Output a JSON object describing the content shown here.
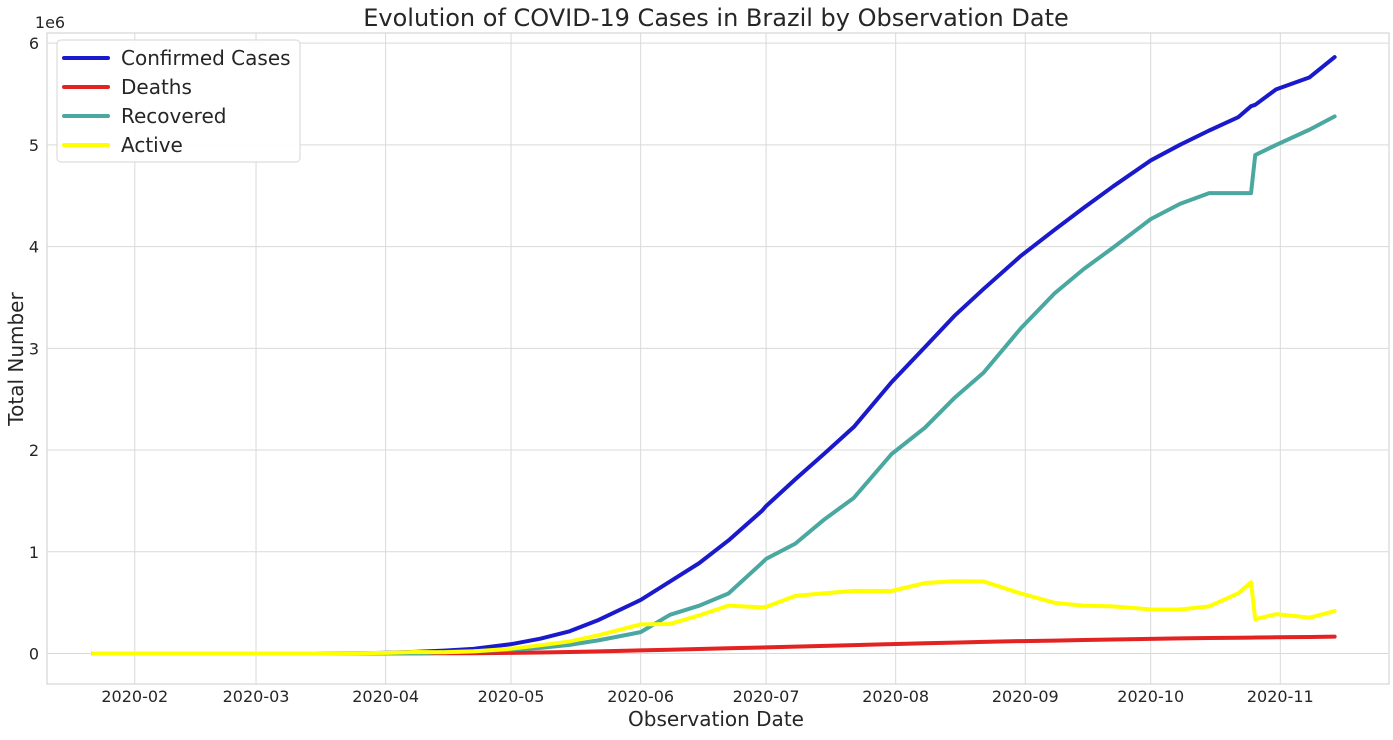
{
  "chart_data": {
    "type": "line",
    "title": "Evolution of COVID-19 Cases in Brazil by Observation Date",
    "xlabel": "Observation Date",
    "ylabel": "Total Number",
    "y_offset_label": "1e6",
    "x_tick_labels": [
      "2020-02",
      "2020-03",
      "2020-04",
      "2020-05",
      "2020-06",
      "2020-07",
      "2020-08",
      "2020-09",
      "2020-10",
      "2020-11"
    ],
    "x_ticks": [
      "2020-02-01",
      "2020-03-01",
      "2020-04-01",
      "2020-05-01",
      "2020-06-01",
      "2020-07-01",
      "2020-08-01",
      "2020-09-01",
      "2020-10-01",
      "2020-11-01"
    ],
    "y_tick_labels": [
      "0",
      "1",
      "2",
      "3",
      "4",
      "5",
      "6"
    ],
    "y_ticks": [
      0,
      1000000,
      2000000,
      3000000,
      4000000,
      5000000,
      6000000
    ],
    "xlim": [
      "2020-01-11",
      "2020-11-27"
    ],
    "ylim": [
      -300000,
      6100000
    ],
    "grid": true,
    "legend_position": "top-left",
    "x": [
      "2020-01-22",
      "2020-02-15",
      "2020-03-01",
      "2020-03-15",
      "2020-03-25",
      "2020-04-01",
      "2020-04-08",
      "2020-04-15",
      "2020-04-22",
      "2020-05-01",
      "2020-05-08",
      "2020-05-15",
      "2020-05-22",
      "2020-06-01",
      "2020-06-08",
      "2020-06-15",
      "2020-06-22",
      "2020-06-30",
      "2020-07-01",
      "2020-07-08",
      "2020-07-15",
      "2020-07-22",
      "2020-07-31",
      "2020-08-08",
      "2020-08-15",
      "2020-08-22",
      "2020-08-31",
      "2020-09-08",
      "2020-09-15",
      "2020-09-22",
      "2020-10-01",
      "2020-10-08",
      "2020-10-15",
      "2020-10-22",
      "2020-10-25",
      "2020-10-26",
      "2020-10-31",
      "2020-11-08",
      "2020-11-14"
    ],
    "series": [
      {
        "name": "Confirmed Cases",
        "color": "#1a1acc",
        "values": [
          0,
          0,
          2,
          200,
          2400,
          6800,
          15900,
          28300,
          45800,
          91600,
          145300,
          218200,
          330900,
          526400,
          707400,
          888300,
          1111300,
          1402000,
          1448800,
          1713200,
          1966700,
          2227500,
          2666300,
          3012400,
          3317100,
          3582400,
          3910900,
          4165100,
          4382300,
          4591600,
          4847100,
          5000700,
          5141500,
          5273900,
          5380600,
          5394100,
          5545700,
          5664100,
          5863100
        ]
      },
      {
        "name": "Deaths",
        "color": "#e32222",
        "values": [
          0,
          0,
          0,
          0,
          50,
          240,
          820,
          1740,
          2900,
          6330,
          9900,
          14800,
          21000,
          30000,
          37000,
          44000,
          51000,
          59000,
          60000,
          67000,
          75000,
          82000,
          92000,
          100000,
          107000,
          114000,
          122000,
          127000,
          133000,
          138000,
          144000,
          148000,
          152000,
          155000,
          156000,
          157000,
          159000,
          162000,
          166000
        ]
      },
      {
        "name": "Recovered",
        "color": "#4aa8a0",
        "values": [
          0,
          0,
          0,
          0,
          0,
          120,
          200,
          14000,
          22000,
          38000,
          55000,
          85000,
          130000,
          210000,
          380000,
          470000,
          590000,
          890000,
          930000,
          1080000,
          1320000,
          1530000,
          1960000,
          2220000,
          2510000,
          2760000,
          3200000,
          3540000,
          3780000,
          3990000,
          4270000,
          4420000,
          4526000,
          4526000,
          4526000,
          4900000,
          5000000,
          5150000,
          5280000
        ]
      },
      {
        "name": "Active",
        "color": "#ffff00",
        "values": [
          0,
          0,
          2,
          200,
          2350,
          6440,
          14880,
          12560,
          20900,
          47270,
          80400,
          118400,
          179900,
          286400,
          290400,
          374300,
          470300,
          453000,
          458800,
          566200,
          591700,
          615500,
          614300,
          692400,
          710100,
          708400,
          588900,
          498100,
          469300,
          463600,
          433100,
          432700,
          463500,
          592900,
          699600,
          337100,
          386700,
          352100,
          417100
        ]
      }
    ]
  }
}
